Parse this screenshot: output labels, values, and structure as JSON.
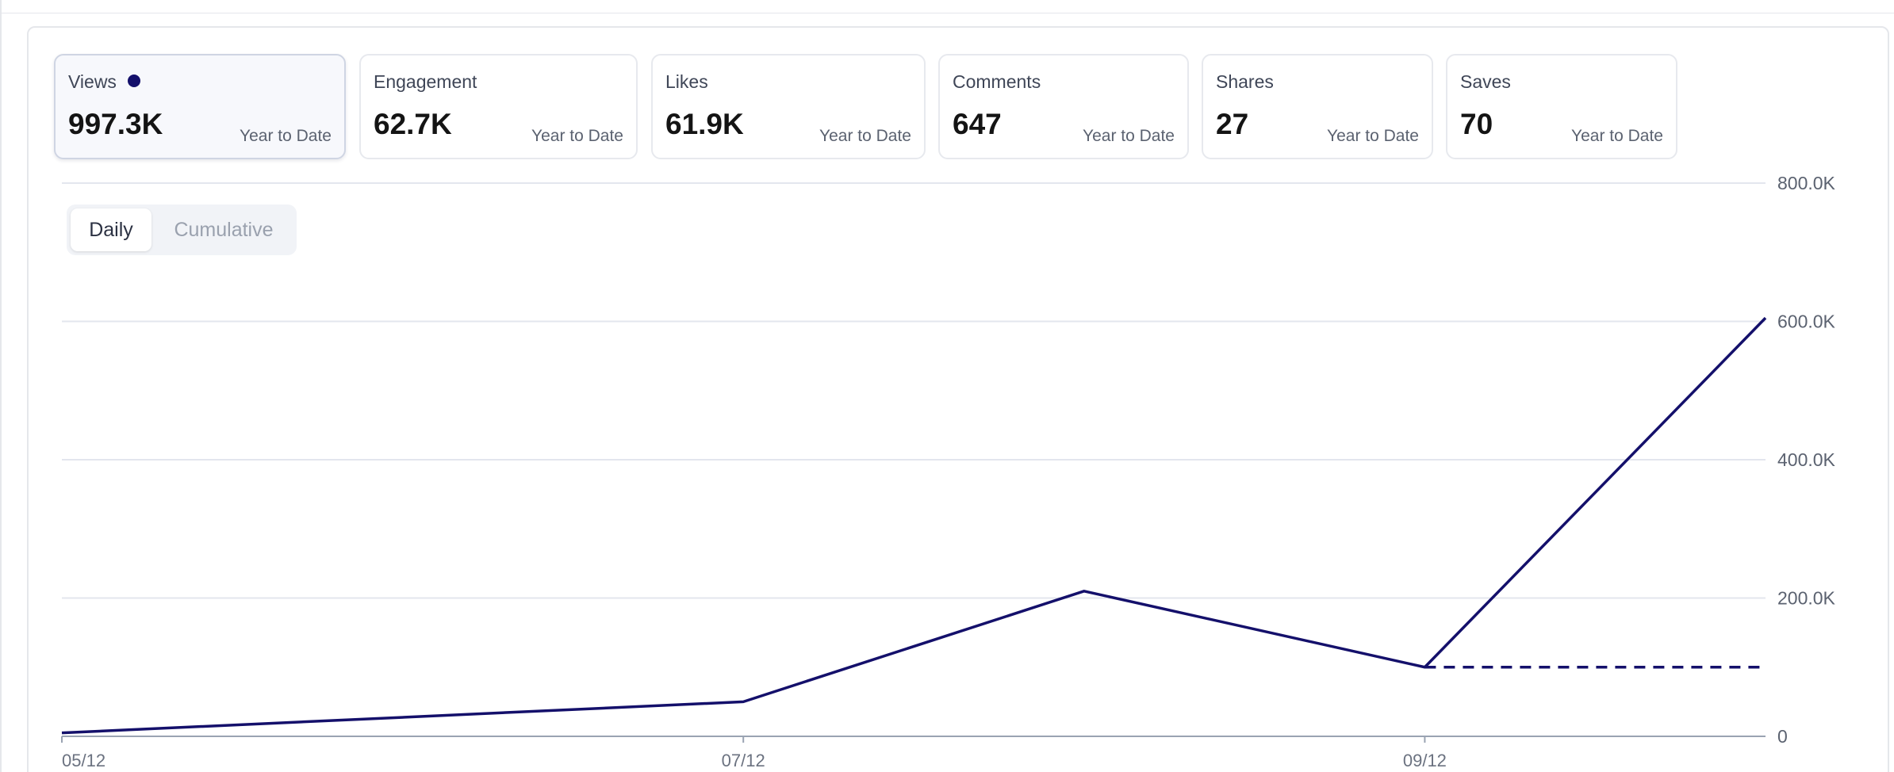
{
  "metrics": [
    {
      "label": "Views",
      "value": "997.3K",
      "period": "Year to Date",
      "active": true
    },
    {
      "label": "Engagement",
      "value": "62.7K",
      "period": "Year to Date",
      "active": false
    },
    {
      "label": "Likes",
      "value": "61.9K",
      "period": "Year to Date",
      "active": false
    },
    {
      "label": "Comments",
      "value": "647",
      "period": "Year to Date",
      "active": false
    },
    {
      "label": "Shares",
      "value": "27",
      "period": "Year to Date",
      "active": false
    },
    {
      "label": "Saves",
      "value": "70",
      "period": "Year to Date",
      "active": false
    }
  ],
  "toggle": {
    "daily_label": "Daily",
    "cumulative_label": "Cumulative",
    "selected": "Daily"
  },
  "colors": {
    "accent": "#14106b",
    "grid": "#e3e6ee",
    "axis": "#9aa3b2"
  },
  "chart_data": {
    "type": "line",
    "title": "",
    "xlabel": "",
    "ylabel": "",
    "ylim": [
      0,
      800000
    ],
    "yticks": [
      0,
      200000,
      400000,
      600000,
      800000
    ],
    "ytick_labels": [
      "0",
      "200.0K",
      "400.0K",
      "600.0K",
      "800.0K"
    ],
    "xtick_labels": [
      "05/12",
      "07/12",
      "09/12"
    ],
    "grid": true,
    "series": [
      {
        "style": "solid",
        "x": [
          "05/12",
          "07/12",
          "08/12",
          "09/12",
          "10/12"
        ],
        "values": [
          5000,
          50000,
          210000,
          100000,
          605000
        ]
      },
      {
        "style": "dashed",
        "x": [
          "09/12",
          "10/12"
        ],
        "values": [
          100000,
          100000
        ]
      }
    ]
  }
}
